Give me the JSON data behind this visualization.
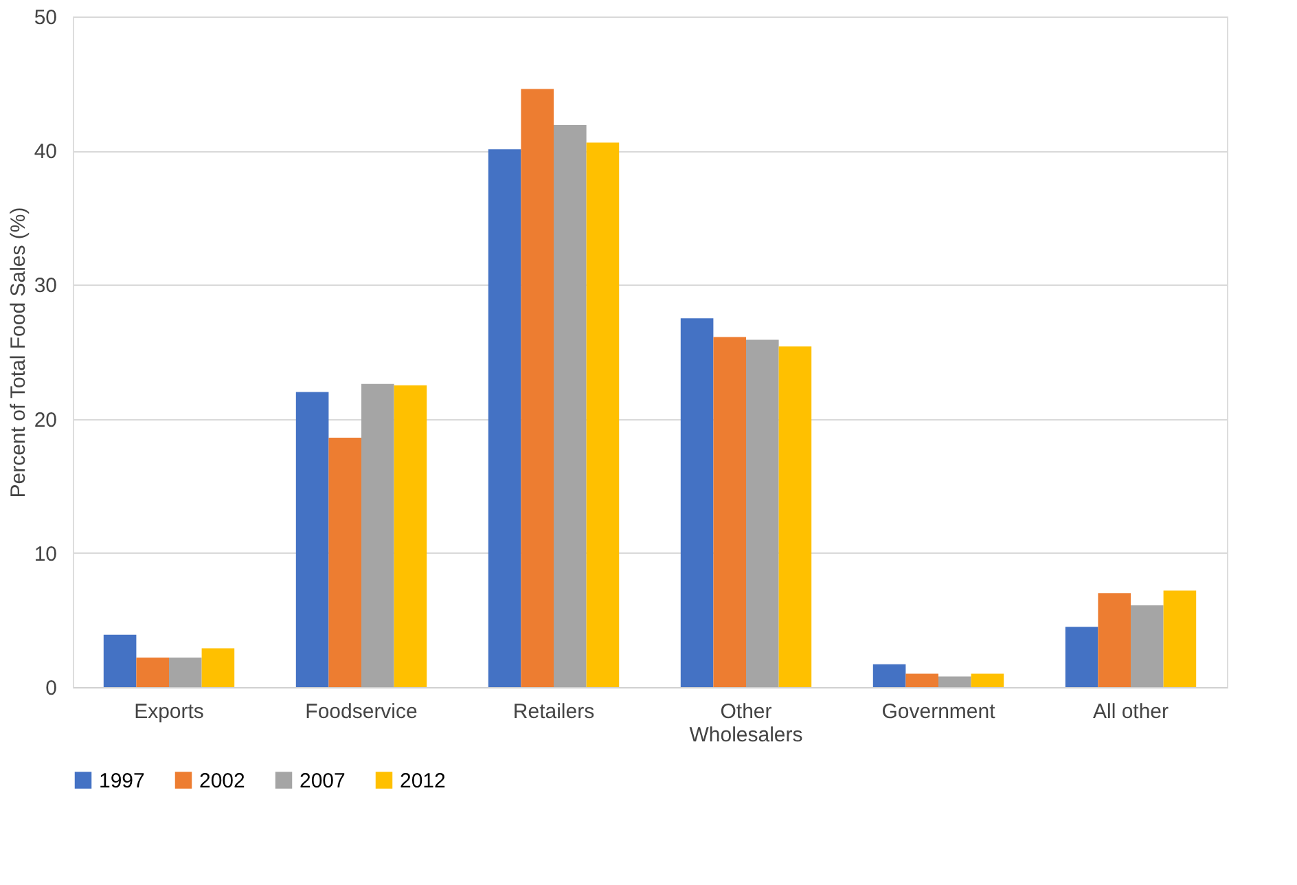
{
  "chart_data": {
    "type": "bar",
    "ylabel": "Percent of Total Food Sales (%)",
    "categories": [
      "Exports",
      "Foodservice",
      "Retailers",
      "Other Wholesalers",
      "Government",
      "All other"
    ],
    "series": [
      {
        "name": "1997",
        "color": "#4472c4",
        "values": [
          3.9,
          22.0,
          40.1,
          27.5,
          1.7,
          4.5
        ]
      },
      {
        "name": "2002",
        "color": "#ed7d31",
        "values": [
          2.2,
          18.6,
          44.6,
          26.1,
          1.0,
          7.0
        ]
      },
      {
        "name": "2007",
        "color": "#a5a5a5",
        "values": [
          2.2,
          22.6,
          41.9,
          25.9,
          0.8,
          6.1
        ]
      },
      {
        "name": "2012",
        "color": "#ffc000",
        "values": [
          2.9,
          22.5,
          40.6,
          25.4,
          1.0,
          7.2
        ]
      }
    ],
    "ylim": [
      0,
      50
    ],
    "yticks": [
      0,
      10,
      20,
      30,
      40,
      50
    ],
    "grid": "y",
    "legend": "bottom"
  }
}
